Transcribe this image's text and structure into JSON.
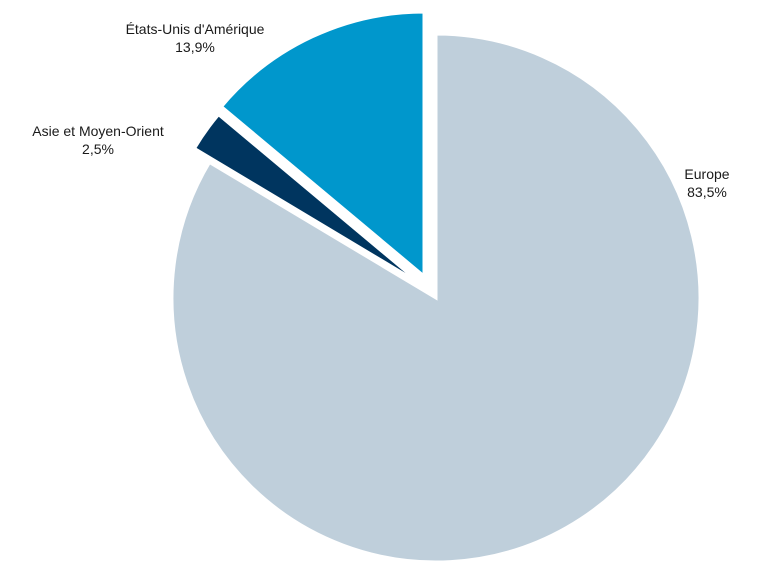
{
  "chart_data": {
    "type": "pie",
    "slices": [
      {
        "name": "Europe",
        "value": 83.5,
        "label": "83,5%",
        "color": "#bfcfdb"
      },
      {
        "name": "Asie et Moyen-Orient",
        "value": 2.5,
        "label": "2,5%",
        "color": "#00355f"
      },
      {
        "name": "États-Unis d'Amérique",
        "value": 13.9,
        "label": "13,9%",
        "color": "#0097cc"
      }
    ],
    "start_angle": "12 o'clock",
    "direction": "clockwise",
    "exploded": true
  }
}
